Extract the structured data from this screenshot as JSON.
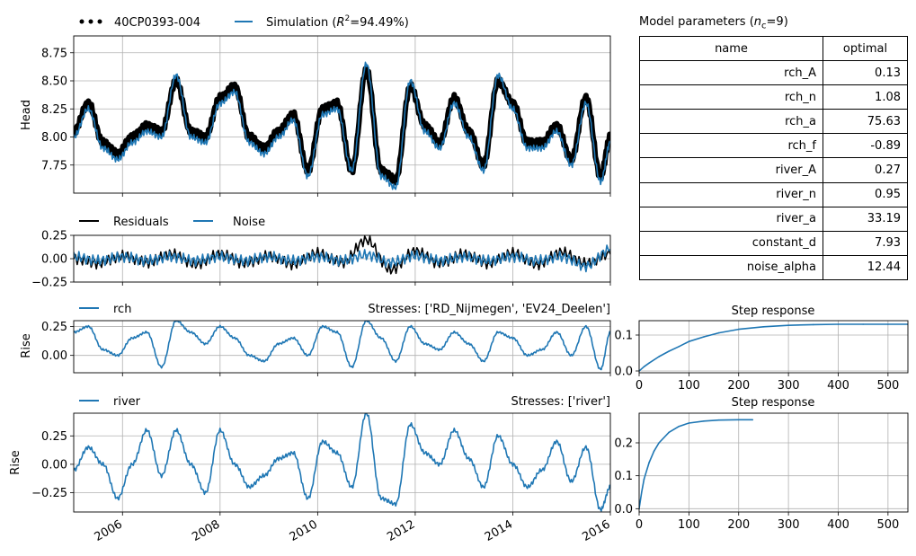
{
  "main": {
    "legend": {
      "obs_label": "40CP0393-004",
      "sim_label_pre": "Simulation (",
      "sim_label_r2": "R",
      "sim_label_post": "=94.49%)"
    },
    "ylabel": "Head"
  },
  "resid": {
    "legend": {
      "residuals_label": "Residuals",
      "noise_label": "Noise"
    }
  },
  "rch": {
    "legend_label": "rch",
    "stress_label": "Stresses: ['RD_Nijmegen', 'EV24_Deelen']",
    "ylabel": "Rise"
  },
  "river": {
    "legend_label": "river",
    "stress_label": "Stresses: ['river']",
    "ylabel": "Rise"
  },
  "params": {
    "title_pre": "Model parameters (",
    "title_sub": "c",
    "title_post": "=9)",
    "header_name": "name",
    "header_optimal": "optimal",
    "rows": [
      {
        "name": "rch_A",
        "value": "0.13"
      },
      {
        "name": "rch_n",
        "value": "1.08"
      },
      {
        "name": "rch_a",
        "value": "75.63"
      },
      {
        "name": "rch_f",
        "value": "-0.89"
      },
      {
        "name": "river_A",
        "value": "0.27"
      },
      {
        "name": "river_n",
        "value": "0.95"
      },
      {
        "name": "river_a",
        "value": "33.19"
      },
      {
        "name": "constant_d",
        "value": "7.93"
      },
      {
        "name": "noise_alpha",
        "value": "12.44"
      }
    ]
  },
  "step1": {
    "title": "Step response"
  },
  "step2": {
    "title": "Step response"
  },
  "chart_data": [
    {
      "id": "head",
      "type": "line",
      "ylabel": "Head",
      "xlim": [
        2005.0,
        2016.0
      ],
      "ylim": [
        7.5,
        8.9
      ],
      "yticks": [
        "7.75",
        "8.00",
        "8.25",
        "8.50",
        "8.75"
      ],
      "grid": true,
      "legend_position": "top",
      "series": [
        {
          "name": "40CP0393-004",
          "color": "#000000",
          "x": [
            2005.0,
            2005.3,
            2005.6,
            2005.9,
            2006.2,
            2006.5,
            2006.8,
            2007.1,
            2007.4,
            2007.7,
            2008.0,
            2008.3,
            2008.6,
            2008.9,
            2009.2,
            2009.5,
            2009.8,
            2010.1,
            2010.4,
            2010.7,
            2011.0,
            2011.3,
            2011.6,
            2011.9,
            2012.2,
            2012.5,
            2012.8,
            2013.1,
            2013.4,
            2013.7,
            2014.0,
            2014.3,
            2014.6,
            2014.9,
            2015.2,
            2015.5,
            2015.8,
            2016.0
          ],
          "y": [
            8.05,
            8.3,
            7.95,
            7.85,
            8.0,
            8.1,
            8.05,
            8.5,
            8.05,
            8.0,
            8.35,
            8.45,
            8.0,
            7.9,
            8.05,
            8.2,
            7.7,
            8.25,
            8.3,
            7.7,
            8.6,
            7.7,
            7.62,
            8.45,
            8.1,
            7.95,
            8.35,
            8.05,
            7.75,
            8.5,
            8.3,
            7.95,
            7.95,
            8.1,
            7.8,
            8.35,
            7.65,
            8.0
          ]
        },
        {
          "name": "Simulation",
          "color": "#1f77b4",
          "x": [
            2005.0,
            2005.3,
            2005.6,
            2005.9,
            2006.2,
            2006.5,
            2006.8,
            2007.1,
            2007.4,
            2007.7,
            2008.0,
            2008.3,
            2008.6,
            2008.9,
            2009.2,
            2009.5,
            2009.8,
            2010.1,
            2010.4,
            2010.7,
            2011.0,
            2011.3,
            2011.6,
            2011.9,
            2012.2,
            2012.5,
            2012.8,
            2013.1,
            2013.4,
            2013.7,
            2014.0,
            2014.3,
            2014.6,
            2014.9,
            2015.2,
            2015.5,
            2015.8,
            2016.0
          ],
          "y": [
            8.0,
            8.25,
            7.9,
            7.8,
            7.95,
            8.05,
            8.0,
            8.55,
            8.0,
            7.95,
            8.3,
            8.4,
            7.95,
            7.85,
            8.0,
            8.15,
            7.65,
            8.2,
            8.25,
            7.7,
            8.65,
            7.65,
            7.55,
            8.5,
            8.05,
            7.9,
            8.3,
            8.0,
            7.7,
            8.55,
            8.25,
            7.9,
            7.9,
            8.05,
            7.75,
            8.3,
            7.6,
            7.95
          ]
        }
      ]
    },
    {
      "id": "residuals",
      "type": "line",
      "xlim": [
        2005.0,
        2016.0
      ],
      "ylim": [
        -0.25,
        0.25
      ],
      "yticks": [
        "−0.25",
        "0.00",
        "0.25"
      ],
      "grid": true,
      "series": [
        {
          "name": "Residuals",
          "color": "#000000",
          "x": [
            2005.0,
            2005.5,
            2006.0,
            2006.5,
            2007.0,
            2007.5,
            2008.0,
            2008.5,
            2009.0,
            2009.5,
            2010.0,
            2010.5,
            2011.0,
            2011.5,
            2012.0,
            2012.5,
            2013.0,
            2013.5,
            2014.0,
            2014.5,
            2015.0,
            2015.5,
            2016.0
          ],
          "y": [
            0.0,
            -0.05,
            0.03,
            -0.04,
            0.05,
            -0.06,
            0.05,
            -0.05,
            0.03,
            -0.06,
            0.06,
            -0.04,
            0.2,
            -0.12,
            0.08,
            -0.05,
            0.05,
            -0.05,
            0.06,
            -0.06,
            0.07,
            -0.05,
            0.05
          ]
        },
        {
          "name": "Noise",
          "color": "#1f77b4",
          "x": [
            2005.0,
            2005.5,
            2006.0,
            2006.5,
            2007.0,
            2007.5,
            2008.0,
            2008.5,
            2009.0,
            2009.5,
            2010.0,
            2010.5,
            2011.0,
            2011.5,
            2012.0,
            2012.5,
            2013.0,
            2013.5,
            2014.0,
            2014.5,
            2015.0,
            2015.5,
            2016.0
          ],
          "y": [
            0.02,
            -0.02,
            0.02,
            -0.02,
            0.02,
            -0.02,
            0.02,
            -0.02,
            0.02,
            -0.02,
            0.02,
            -0.02,
            0.04,
            -0.04,
            0.03,
            -0.02,
            0.02,
            -0.02,
            0.02,
            -0.02,
            0.02,
            -0.08,
            0.1
          ]
        }
      ]
    },
    {
      "id": "rch",
      "type": "line",
      "ylabel": "Rise",
      "xlim": [
        2005.0,
        2016.0
      ],
      "ylim": [
        -0.15,
        0.3
      ],
      "yticks": [
        "0.00",
        "0.25"
      ],
      "grid": true,
      "series": [
        {
          "name": "rch",
          "color": "#1f77b4",
          "x": [
            2005.0,
            2005.3,
            2005.6,
            2005.9,
            2006.2,
            2006.5,
            2006.8,
            2007.1,
            2007.4,
            2007.7,
            2008.0,
            2008.3,
            2008.6,
            2008.9,
            2009.2,
            2009.5,
            2009.8,
            2010.1,
            2010.4,
            2010.7,
            2011.0,
            2011.3,
            2011.6,
            2011.9,
            2012.2,
            2012.5,
            2012.8,
            2013.1,
            2013.4,
            2013.7,
            2014.0,
            2014.3,
            2014.6,
            2014.9,
            2015.2,
            2015.5,
            2015.8,
            2016.0
          ],
          "y": [
            0.2,
            0.25,
            0.05,
            0.0,
            0.15,
            0.2,
            -0.1,
            0.3,
            0.2,
            0.1,
            0.25,
            0.15,
            0.0,
            -0.05,
            0.1,
            0.15,
            0.0,
            0.25,
            0.2,
            -0.1,
            0.3,
            0.15,
            -0.05,
            0.25,
            0.1,
            0.05,
            0.2,
            0.1,
            -0.05,
            0.2,
            0.15,
            0.0,
            0.05,
            0.2,
            0.0,
            0.25,
            -0.12,
            0.2
          ]
        }
      ]
    },
    {
      "id": "river",
      "type": "line",
      "ylabel": "Rise",
      "xlim": [
        2005.0,
        2016.0
      ],
      "ylim": [
        -0.42,
        0.45
      ],
      "yticks": [
        "−0.25",
        "0.00",
        "0.25"
      ],
      "xticks": [
        "2006",
        "2008",
        "2010",
        "2012",
        "2014",
        "2016"
      ],
      "grid": true,
      "series": [
        {
          "name": "river",
          "color": "#1f77b4",
          "x": [
            2005.0,
            2005.3,
            2005.6,
            2005.9,
            2006.2,
            2006.5,
            2006.8,
            2007.1,
            2007.4,
            2007.7,
            2008.0,
            2008.3,
            2008.6,
            2008.9,
            2009.2,
            2009.5,
            2009.8,
            2010.1,
            2010.4,
            2010.7,
            2011.0,
            2011.3,
            2011.6,
            2011.9,
            2012.2,
            2012.5,
            2012.8,
            2013.1,
            2013.4,
            2013.7,
            2014.0,
            2014.3,
            2014.6,
            2014.9,
            2015.2,
            2015.5,
            2015.8,
            2016.0
          ],
          "y": [
            -0.05,
            0.15,
            0.0,
            -0.3,
            0.0,
            0.3,
            -0.1,
            0.3,
            0.0,
            -0.25,
            0.3,
            0.0,
            -0.2,
            -0.1,
            0.05,
            0.1,
            -0.3,
            0.2,
            0.1,
            -0.2,
            0.45,
            -0.3,
            -0.35,
            0.35,
            0.1,
            0.0,
            0.3,
            0.05,
            -0.2,
            0.25,
            0.0,
            -0.2,
            -0.05,
            0.2,
            -0.15,
            0.15,
            -0.4,
            -0.2
          ]
        }
      ]
    },
    {
      "id": "step_rch",
      "type": "line",
      "title": "Step response",
      "xlim": [
        0,
        540
      ],
      "ylim": [
        -0.005,
        0.14
      ],
      "xticks": [
        "0",
        "100",
        "200",
        "300",
        "400",
        "500"
      ],
      "yticks": [
        "0.0",
        "0.1"
      ],
      "grid": true,
      "series": [
        {
          "color": "#1f77b4",
          "x": [
            0,
            10,
            20,
            40,
            60,
            80,
            100,
            130,
            160,
            200,
            250,
            300,
            350,
            400,
            450,
            500,
            540
          ],
          "y": [
            0,
            0.012,
            0.022,
            0.04,
            0.055,
            0.068,
            0.082,
            0.095,
            0.106,
            0.116,
            0.123,
            0.127,
            0.129,
            0.13,
            0.13,
            0.13,
            0.13
          ]
        }
      ]
    },
    {
      "id": "step_river",
      "type": "line",
      "title": "Step response",
      "xlim": [
        0,
        540
      ],
      "ylim": [
        -0.01,
        0.29
      ],
      "xticks": [
        "0",
        "100",
        "200",
        "300",
        "400",
        "500"
      ],
      "yticks": [
        "0.0",
        "0.1",
        "0.2"
      ],
      "grid": true,
      "series": [
        {
          "color": "#1f77b4",
          "x": [
            0,
            5,
            10,
            20,
            30,
            40,
            60,
            80,
            100,
            130,
            160,
            200,
            228
          ],
          "y": [
            0,
            0.05,
            0.09,
            0.14,
            0.175,
            0.2,
            0.232,
            0.25,
            0.26,
            0.266,
            0.269,
            0.27,
            0.27
          ]
        }
      ]
    }
  ]
}
